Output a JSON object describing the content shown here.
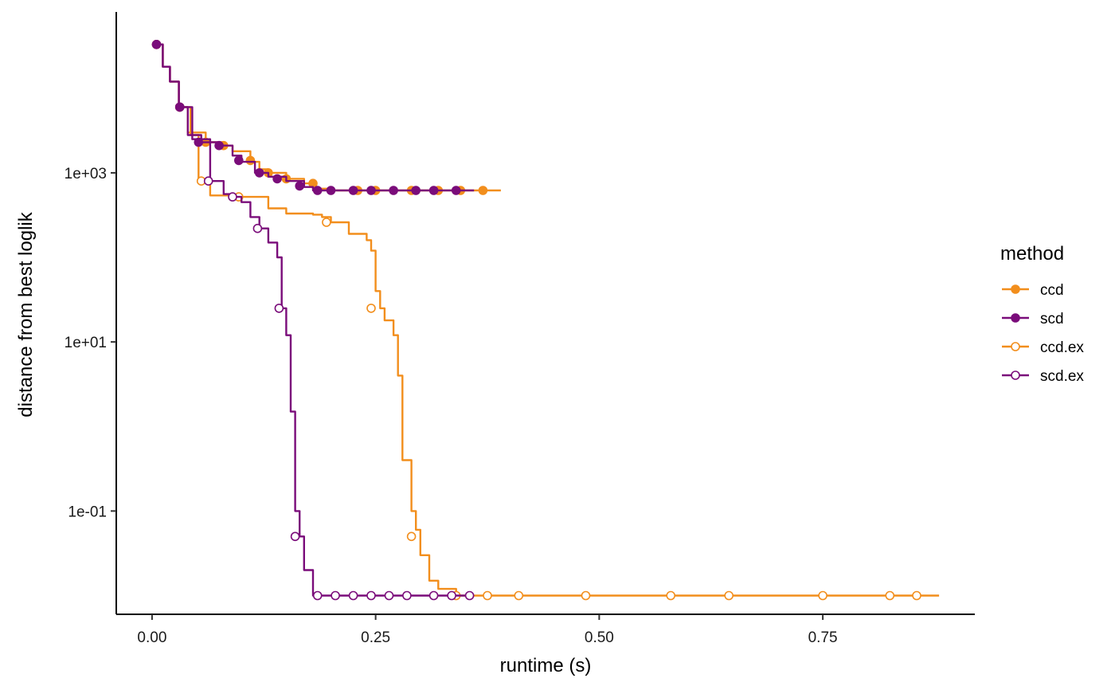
{
  "chart_data": {
    "type": "line",
    "xlabel": "runtime (s)",
    "ylabel": "distance from best loglik",
    "x_scale": "linear",
    "y_scale": "log10",
    "xlim": [
      -0.04,
      0.92
    ],
    "ylim": [
      0.006,
      80000
    ],
    "x_ticks": [
      0.0,
      0.25,
      0.5,
      0.75
    ],
    "x_tick_labels": [
      "0.00",
      "0.25",
      "0.50",
      "0.75"
    ],
    "y_ticks": [
      0.1,
      10,
      1000
    ],
    "y_tick_labels": [
      "1e-01",
      "1e+01",
      "1e+03"
    ],
    "grid": false,
    "legend": {
      "title": "method",
      "position": "right",
      "entries": [
        "ccd",
        "scd",
        "ccd.ex",
        "scd.ex"
      ]
    },
    "colors": {
      "ccd": "#F28E1C",
      "scd": "#7A0C7A",
      "ccd.ex": "#F28E1C",
      "scd.ex": "#7A0C7A"
    },
    "series": [
      {
        "name": "ccd",
        "marker": "filled",
        "line": [
          [
            0.005,
            33000
          ],
          [
            0.012,
            18000
          ],
          [
            0.02,
            12000
          ],
          [
            0.03,
            6000
          ],
          [
            0.04,
            3000
          ],
          [
            0.06,
            2300
          ],
          [
            0.08,
            2100
          ],
          [
            0.09,
            1800
          ],
          [
            0.11,
            1350
          ],
          [
            0.12,
            1100
          ],
          [
            0.13,
            1000
          ],
          [
            0.15,
            850
          ],
          [
            0.17,
            750
          ],
          [
            0.18,
            650
          ],
          [
            0.2,
            620
          ],
          [
            0.39,
            620
          ]
        ],
        "points": [
          [
            0.005,
            33000
          ],
          [
            0.031,
            6000
          ],
          [
            0.06,
            2300
          ],
          [
            0.08,
            2100
          ],
          [
            0.11,
            1400
          ],
          [
            0.13,
            1000
          ],
          [
            0.15,
            850
          ],
          [
            0.18,
            750
          ],
          [
            0.23,
            620
          ],
          [
            0.25,
            620
          ],
          [
            0.29,
            620
          ],
          [
            0.32,
            620
          ],
          [
            0.345,
            620
          ],
          [
            0.37,
            620
          ]
        ]
      },
      {
        "name": "scd",
        "marker": "filled",
        "line": [
          [
            0.005,
            33000
          ],
          [
            0.012,
            18000
          ],
          [
            0.02,
            12000
          ],
          [
            0.03,
            6000
          ],
          [
            0.04,
            2800
          ],
          [
            0.055,
            2300
          ],
          [
            0.075,
            2100
          ],
          [
            0.09,
            1600
          ],
          [
            0.1,
            1350
          ],
          [
            0.115,
            1000
          ],
          [
            0.13,
            900
          ],
          [
            0.15,
            800
          ],
          [
            0.17,
            680
          ],
          [
            0.18,
            620
          ],
          [
            0.36,
            620
          ]
        ],
        "points": [
          [
            0.005,
            33000
          ],
          [
            0.031,
            6000
          ],
          [
            0.052,
            2300
          ],
          [
            0.075,
            2100
          ],
          [
            0.097,
            1400
          ],
          [
            0.12,
            1000
          ],
          [
            0.14,
            850
          ],
          [
            0.165,
            700
          ],
          [
            0.185,
            620
          ],
          [
            0.2,
            620
          ],
          [
            0.225,
            620
          ],
          [
            0.245,
            620
          ],
          [
            0.27,
            620
          ],
          [
            0.295,
            620
          ],
          [
            0.315,
            620
          ],
          [
            0.34,
            620
          ]
        ]
      },
      {
        "name": "ccd.ex",
        "marker": "open",
        "line": [
          [
            0.005,
            33000
          ],
          [
            0.012,
            18000
          ],
          [
            0.02,
            12000
          ],
          [
            0.03,
            6000
          ],
          [
            0.043,
            2800
          ],
          [
            0.052,
            800
          ],
          [
            0.065,
            540
          ],
          [
            0.1,
            520
          ],
          [
            0.13,
            380
          ],
          [
            0.15,
            330
          ],
          [
            0.18,
            320
          ],
          [
            0.19,
            300
          ],
          [
            0.2,
            260
          ],
          [
            0.22,
            190
          ],
          [
            0.24,
            160
          ],
          [
            0.245,
            120
          ],
          [
            0.25,
            40
          ],
          [
            0.255,
            25
          ],
          [
            0.26,
            18
          ],
          [
            0.27,
            12
          ],
          [
            0.275,
            4
          ],
          [
            0.28,
            0.4
          ],
          [
            0.29,
            0.1
          ],
          [
            0.295,
            0.06
          ],
          [
            0.3,
            0.03
          ],
          [
            0.31,
            0.015
          ],
          [
            0.32,
            0.012
          ],
          [
            0.34,
            0.01
          ],
          [
            0.88,
            0.01
          ]
        ],
        "points": [
          [
            0.005,
            33000
          ],
          [
            0.031,
            6000
          ],
          [
            0.055,
            800
          ],
          [
            0.097,
            520
          ],
          [
            0.195,
            260
          ],
          [
            0.245,
            25
          ],
          [
            0.29,
            0.05
          ],
          [
            0.34,
            0.01
          ],
          [
            0.375,
            0.01
          ],
          [
            0.41,
            0.01
          ],
          [
            0.485,
            0.01
          ],
          [
            0.58,
            0.01
          ],
          [
            0.645,
            0.01
          ],
          [
            0.75,
            0.01
          ],
          [
            0.825,
            0.01
          ],
          [
            0.855,
            0.01
          ]
        ]
      },
      {
        "name": "scd.ex",
        "marker": "open",
        "line": [
          [
            0.005,
            33000
          ],
          [
            0.012,
            18000
          ],
          [
            0.02,
            12000
          ],
          [
            0.03,
            6000
          ],
          [
            0.045,
            2500
          ],
          [
            0.065,
            800
          ],
          [
            0.08,
            560
          ],
          [
            0.09,
            520
          ],
          [
            0.1,
            450
          ],
          [
            0.11,
            300
          ],
          [
            0.12,
            220
          ],
          [
            0.13,
            150
          ],
          [
            0.14,
            100
          ],
          [
            0.145,
            25
          ],
          [
            0.15,
            12
          ],
          [
            0.155,
            1.5
          ],
          [
            0.16,
            0.1
          ],
          [
            0.165,
            0.05
          ],
          [
            0.17,
            0.02
          ],
          [
            0.18,
            0.01
          ],
          [
            0.36,
            0.01
          ]
        ],
        "points": [
          [
            0.005,
            33000
          ],
          [
            0.031,
            6000
          ],
          [
            0.063,
            800
          ],
          [
            0.09,
            520
          ],
          [
            0.118,
            220
          ],
          [
            0.142,
            25
          ],
          [
            0.16,
            0.05
          ],
          [
            0.185,
            0.01
          ],
          [
            0.205,
            0.01
          ],
          [
            0.225,
            0.01
          ],
          [
            0.245,
            0.01
          ],
          [
            0.265,
            0.01
          ],
          [
            0.285,
            0.01
          ],
          [
            0.315,
            0.01
          ],
          [
            0.335,
            0.01
          ],
          [
            0.355,
            0.01
          ]
        ]
      }
    ]
  }
}
